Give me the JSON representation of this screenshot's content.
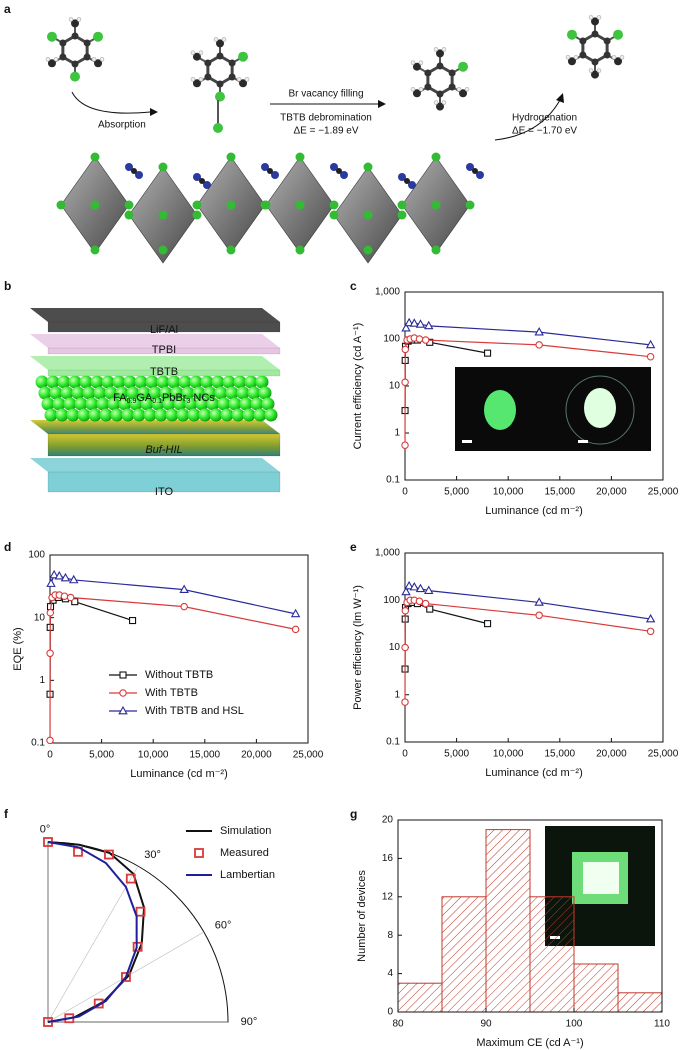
{
  "panel_labels": [
    "a",
    "b",
    "c",
    "d",
    "e",
    "f",
    "g"
  ],
  "panel_a": {
    "absorption": "Absorption",
    "filling": "Br vacancy filling",
    "debromination": "TBTB debromination",
    "energy_1": "ΔE = −1.89 eV",
    "hydrogenation": "Hydrogenation",
    "energy_2": "ΔE = −1.70 eV"
  },
  "panel_b": {
    "top_layers": [
      "LiF/Al",
      "TPBI",
      "TBTB"
    ],
    "perovskite": [
      "FA",
      "0.9",
      "GA",
      "0.1",
      "PbBr",
      "3",
      " NCs"
    ],
    "buffer": "Buf-HIL",
    "ito": "ITO"
  },
  "chart_data": [
    {
      "type": "line",
      "ylabel": "Current efficiency (cd A⁻¹)",
      "xlabel": "Luminance (cd m⁻²)",
      "yscale": "log",
      "xlim": [
        0,
        25000
      ],
      "xticks": [
        0,
        {
          "value": 5000,
          "label": "5,000"
        },
        {
          "value": 10000,
          "label": "10,000"
        },
        {
          "value": 15000,
          "label": "15,000"
        },
        {
          "value": 20000,
          "label": "20,000"
        },
        {
          "value": 25000,
          "label": "25,000"
        }
      ],
      "ylim": [
        0.1,
        1000
      ],
      "yticks": [
        0.1,
        1,
        10,
        100,
        {
          "value": 1000,
          "label": "1,000"
        }
      ],
      "series": [
        {
          "color": "#111111",
          "marker": "square",
          "x": [
            5,
            20,
            50,
            300,
            700,
            1200,
            2400,
            8000
          ],
          "values": [
            3,
            35,
            70,
            90,
            95,
            95,
            85,
            50
          ]
        },
        {
          "color": "#d93a3a",
          "marker": "circle",
          "x": [
            2,
            10,
            30,
            200,
            500,
            900,
            1400,
            2000,
            13000,
            23800
          ],
          "values": [
            0.55,
            12,
            60,
            95,
            100,
            105,
            100,
            95,
            75,
            42
          ]
        },
        {
          "color": "#2a2a9a",
          "marker": "triangle",
          "x": [
            100,
            400,
            900,
            1500,
            2300,
            13000,
            23800
          ],
          "values": [
            170,
            220,
            215,
            205,
            190,
            140,
            75
          ]
        }
      ]
    },
    {
      "type": "line",
      "ylabel": "EQE (%)",
      "xlabel": "Luminance (cd m⁻²)",
      "yscale": "log",
      "legend": "lower center",
      "xlim": [
        0,
        25000
      ],
      "xticks": [
        0,
        {
          "value": 5000,
          "label": "5,000"
        },
        {
          "value": 10000,
          "label": "10,000"
        },
        {
          "value": 15000,
          "label": "15,000"
        },
        {
          "value": 20000,
          "label": "20,000"
        },
        {
          "value": 25000,
          "label": "25,000"
        }
      ],
      "ylim": [
        0.1,
        100
      ],
      "yticks": [
        0.1,
        1,
        10,
        100
      ],
      "series": [
        {
          "name": "Without TBTB",
          "color": "#111111",
          "marker": "square",
          "x": [
            5,
            20,
            50,
            300,
            800,
            1500,
            2400,
            8000
          ],
          "values": [
            0.6,
            7,
            15,
            19,
            21,
            20,
            18,
            9
          ]
        },
        {
          "name": "With TBTB",
          "color": "#d93a3a",
          "marker": "circle",
          "x": [
            2,
            10,
            30,
            200,
            500,
            900,
            1400,
            2000,
            13000,
            23800
          ],
          "values": [
            0.11,
            2.7,
            12,
            21,
            23,
            23,
            22,
            21,
            15,
            6.5
          ]
        },
        {
          "name": "With TBTB and HSL",
          "color": "#2a2a9a",
          "marker": "triangle",
          "x": [
            100,
            400,
            900,
            1500,
            2300,
            13000,
            23800
          ],
          "values": [
            35,
            48,
            46,
            43,
            40,
            28,
            11.5
          ]
        }
      ]
    },
    {
      "type": "line",
      "ylabel": "Power efficiency (lm W⁻¹)",
      "xlabel": "Luminance (cd m⁻²)",
      "yscale": "log",
      "xlim": [
        0,
        25000
      ],
      "xticks": [
        0,
        {
          "value": 5000,
          "label": "5,000"
        },
        {
          "value": 10000,
          "label": "10,000"
        },
        {
          "value": 15000,
          "label": "15,000"
        },
        {
          "value": 20000,
          "label": "20,000"
        },
        {
          "value": 25000,
          "label": "25,000"
        }
      ],
      "ylim": [
        0.1,
        1000
      ],
      "yticks": [
        0.1,
        1,
        10,
        100,
        {
          "value": 1000,
          "label": "1,000"
        }
      ],
      "series": [
        {
          "color": "#111111",
          "marker": "square",
          "x": [
            5,
            20,
            50,
            300,
            700,
            1200,
            2400,
            8000
          ],
          "values": [
            3.5,
            40,
            70,
            85,
            90,
            85,
            65,
            32
          ]
        },
        {
          "color": "#d93a3a",
          "marker": "circle",
          "x": [
            2,
            10,
            30,
            200,
            500,
            900,
            1400,
            2000,
            13000,
            23800
          ],
          "values": [
            0.7,
            10,
            60,
            90,
            100,
            100,
            95,
            85,
            48,
            22
          ]
        },
        {
          "color": "#2a2a9a",
          "marker": "triangle",
          "x": [
            100,
            400,
            900,
            1500,
            2300,
            13000,
            23800
          ],
          "values": [
            150,
            200,
            190,
            175,
            160,
            90,
            40
          ]
        }
      ]
    },
    {
      "type": "polar",
      "legend": "upper right",
      "rlim": [
        0,
        1
      ],
      "thetaticks": [
        {
          "value": 0,
          "label": "0°"
        },
        {
          "value": 30,
          "label": "30°"
        },
        {
          "value": 60,
          "label": "60°"
        },
        {
          "value": 90,
          "label": "90°"
        }
      ],
      "series": [
        {
          "name": "Simulation",
          "color": "#111111",
          "mode": "line",
          "theta": [
            0,
            10,
            20,
            30,
            40,
            50,
            60,
            70,
            80,
            90
          ],
          "values": [
            1,
            1,
            1,
            0.95,
            0.83,
            0.68,
            0.52,
            0.33,
            0.15,
            0
          ]
        },
        {
          "name": "Measured",
          "color": "#d93a3a",
          "mode": "markers",
          "theta": [
            0,
            10,
            20,
            30,
            40,
            50,
            60,
            70,
            80,
            90
          ],
          "values": [
            1,
            0.96,
            0.99,
            0.92,
            0.8,
            0.65,
            0.5,
            0.3,
            0.12,
            0
          ]
        },
        {
          "name": "Lambertian",
          "color": "#1f1f9a",
          "mode": "line",
          "theta": [
            0,
            10,
            20,
            30,
            40,
            50,
            60,
            70,
            80,
            90
          ],
          "values": [
            1,
            0.985,
            0.94,
            0.866,
            0.766,
            0.643,
            0.5,
            0.342,
            0.174,
            0
          ]
        }
      ]
    },
    {
      "type": "histogram",
      "xlabel": "Maximum CE (cd A⁻¹)",
      "ylabel": "Number of devices",
      "color": "#c0392b",
      "bins": [
        80,
        85,
        90,
        95,
        100,
        105,
        110
      ],
      "values": [
        3,
        12,
        19,
        12,
        5,
        2
      ],
      "xlim": [
        80,
        110
      ],
      "xticks": [
        80,
        90,
        100,
        110
      ],
      "ylim": [
        0,
        20
      ],
      "yticks": [
        0,
        4,
        8,
        12,
        16,
        20
      ]
    }
  ]
}
